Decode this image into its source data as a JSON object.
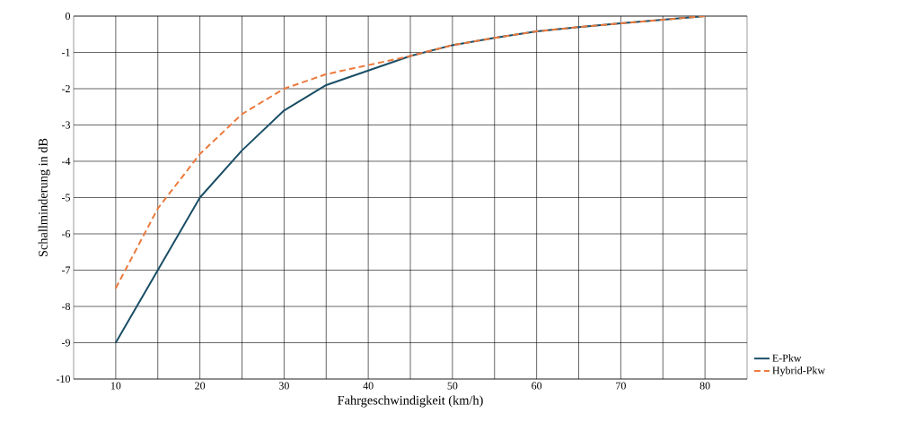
{
  "chart_data": {
    "type": "line",
    "xlabel": "Fahrgeschwindigkeit (km/h)",
    "ylabel": "Schallminderung in dB",
    "x": [
      10,
      15,
      20,
      25,
      30,
      35,
      40,
      45,
      50,
      55,
      60,
      65,
      70,
      75,
      80
    ],
    "series": [
      {
        "name": "E-Pkw",
        "color": "#1a4e66",
        "line_style": "solid",
        "values": [
          -9,
          -7,
          -5,
          -3.7,
          -2.6,
          -1.9,
          -1.5,
          -1.1,
          -0.8,
          -0.6,
          -0.42,
          -0.3,
          -0.2,
          -0.1,
          0
        ]
      },
      {
        "name": "Hybrid-Pkw",
        "color": "#ec7a3c",
        "line_style": "dashed",
        "values": [
          -7.5,
          -5.3,
          -3.8,
          -2.7,
          -2.0,
          -1.6,
          -1.35,
          -1.1,
          -0.8,
          -0.6,
          -0.42,
          -0.3,
          -0.2,
          -0.1,
          0
        ]
      }
    ],
    "xlim": [
      5,
      85
    ],
    "ylim": [
      -10,
      0
    ],
    "xticks": [
      10,
      {
        "value": 15,
        "label": null
      },
      20,
      {
        "value": 25,
        "label": null
      },
      30,
      {
        "value": 35,
        "label": null
      },
      40,
      {
        "value": 45,
        "label": null
      },
      50,
      {
        "value": 55,
        "label": null
      },
      60,
      {
        "value": 65,
        "label": null
      },
      70,
      {
        "value": 75,
        "label": null
      },
      80
    ],
    "yticks": [
      -10,
      -9,
      -8,
      -7,
      -6,
      -5,
      -4,
      -3,
      -2,
      -1,
      0
    ],
    "grid": true,
    "legend": "right",
    "marker": "none"
  }
}
